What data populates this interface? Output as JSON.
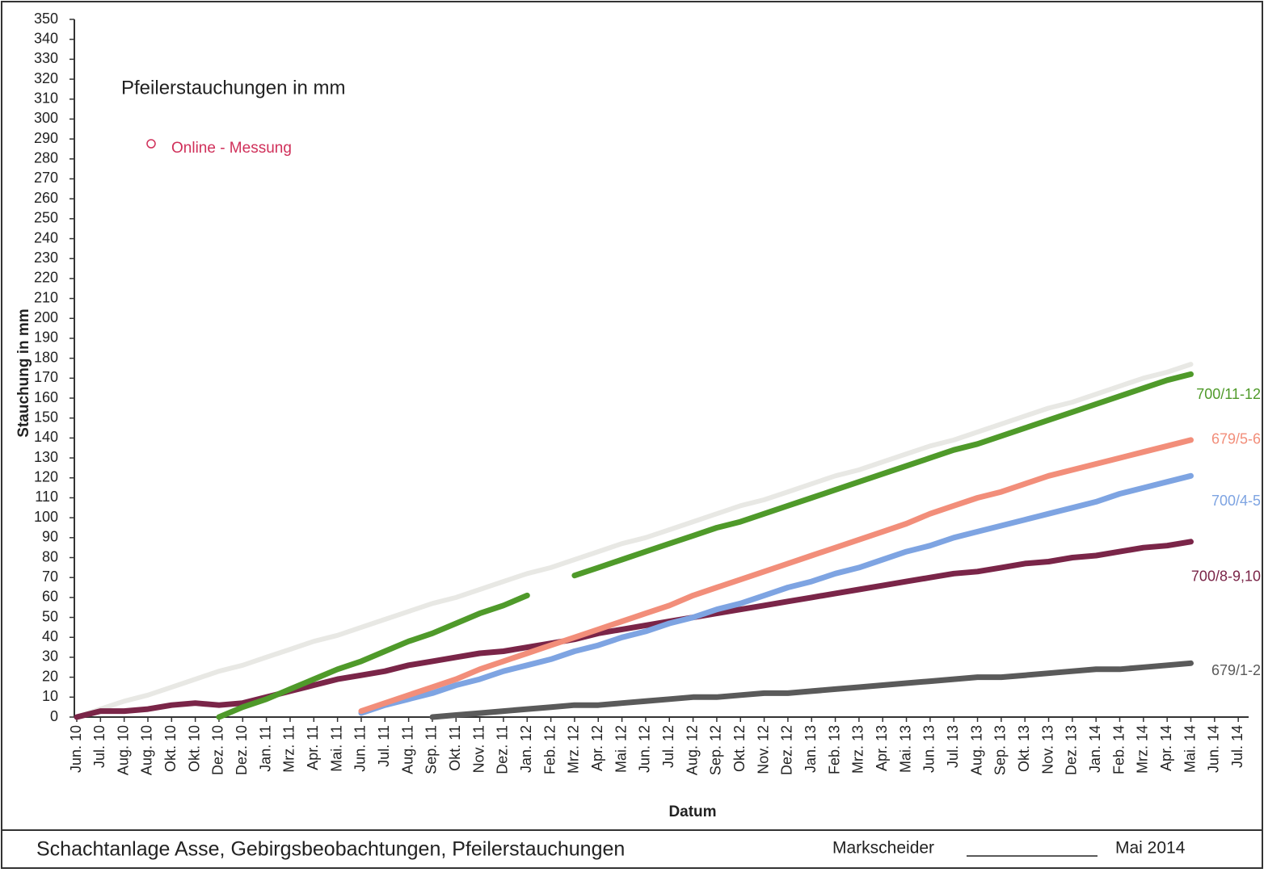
{
  "chart_data": {
    "type": "line",
    "title": "Pfeilerstauchungen in mm",
    "legend_label": "Online - Messung",
    "legend_color": "#d0305a",
    "y_label": "Stauchung in mm",
    "x_label": "Datum",
    "categories": [
      "Jun. 10",
      "Jul. 10",
      "Aug. 10",
      "Aug. 10",
      "Okt. 10",
      "Okt. 10",
      "Dez. 10",
      "Dez. 10",
      "Jan. 11",
      "Mrz. 11",
      "Apr. 11",
      "Mai. 11",
      "Jun. 11",
      "Jul. 11",
      "Aug. 11",
      "Sep. 11",
      "Okt. 11",
      "Nov. 11",
      "Dez. 11",
      "Jan. 12",
      "Feb. 12",
      "Mrz. 12",
      "Apr. 12",
      "Mai. 12",
      "Jun. 12",
      "Jul. 12",
      "Aug. 12",
      "Sep. 12",
      "Okt. 12",
      "Nov. 12",
      "Dez. 12",
      "Jan. 13",
      "Feb. 13",
      "Mrz. 13",
      "Apr. 13",
      "Mai. 13",
      "Jun. 13",
      "Jul. 13",
      "Aug. 13",
      "Sep. 13",
      "Okt. 13",
      "Nov. 13",
      "Dez. 13",
      "Jan. 14",
      "Feb. 14",
      "Mrz. 14",
      "Apr. 14",
      "Mai. 14",
      "Jun. 14",
      "Jul. 14"
    ],
    "ylim": [
      0,
      350
    ],
    "yticks": [
      0,
      10,
      20,
      30,
      40,
      50,
      60,
      70,
      80,
      90,
      100,
      110,
      120,
      130,
      140,
      150,
      160,
      170,
      180,
      190,
      200,
      210,
      220,
      230,
      240,
      250,
      260,
      270,
      280,
      290,
      300,
      310,
      320,
      330,
      340,
      350
    ],
    "series": [
      {
        "color": "#e8e8e4",
        "values": [
          0,
          4,
          8,
          11,
          15,
          19,
          23,
          26,
          30,
          34,
          38,
          41,
          45,
          49,
          53,
          57,
          60,
          64,
          68,
          72,
          75,
          79,
          83,
          87,
          90,
          94,
          98,
          102,
          106,
          109,
          113,
          117,
          121,
          124,
          128,
          132,
          136,
          139,
          143,
          147,
          151,
          155,
          158,
          162,
          166,
          170,
          173,
          177,
          null,
          null
        ]
      },
      {
        "name": "679/1-2",
        "color": "#5a5a5a",
        "values": [
          null,
          null,
          null,
          null,
          null,
          null,
          null,
          null,
          null,
          null,
          null,
          null,
          null,
          null,
          null,
          0,
          1,
          2,
          3,
          4,
          5,
          6,
          6,
          7,
          8,
          9,
          10,
          10,
          11,
          12,
          12,
          13,
          14,
          15,
          16,
          17,
          18,
          19,
          20,
          20,
          21,
          22,
          23,
          24,
          24,
          25,
          26,
          27,
          null,
          null
        ]
      },
      {
        "name": "700/8-9,10",
        "color": "#7a2548",
        "values": [
          0,
          3,
          3,
          4,
          6,
          7,
          6,
          7,
          10,
          13,
          16,
          19,
          21,
          23,
          26,
          28,
          30,
          32,
          33,
          35,
          37,
          39,
          42,
          44,
          46,
          48,
          50,
          52,
          54,
          56,
          58,
          60,
          62,
          64,
          66,
          68,
          70,
          72,
          73,
          75,
          77,
          78,
          80,
          81,
          83,
          85,
          86,
          88,
          null,
          null
        ]
      },
      {
        "name": "700/4-5",
        "color": "#7ea4e2",
        "values": [
          null,
          null,
          null,
          null,
          null,
          null,
          null,
          null,
          null,
          null,
          null,
          null,
          2,
          6,
          9,
          12,
          16,
          19,
          23,
          26,
          29,
          33,
          36,
          40,
          43,
          47,
          50,
          54,
          57,
          61,
          65,
          68,
          72,
          75,
          79,
          83,
          86,
          90,
          93,
          96,
          99,
          102,
          105,
          108,
          112,
          115,
          118,
          121,
          null,
          null
        ]
      },
      {
        "name": "679/5-6",
        "color": "#f28e7a",
        "values": [
          null,
          null,
          null,
          null,
          null,
          null,
          null,
          null,
          null,
          null,
          null,
          null,
          3,
          7,
          11,
          15,
          19,
          24,
          28,
          32,
          36,
          40,
          44,
          48,
          52,
          56,
          61,
          65,
          69,
          73,
          77,
          81,
          85,
          89,
          93,
          97,
          102,
          106,
          110,
          113,
          117,
          121,
          124,
          127,
          130,
          133,
          136,
          139,
          null,
          null
        ]
      },
      {
        "name": "700/11-12",
        "color": "#4f9a2a",
        "values": [
          null,
          null,
          null,
          null,
          null,
          null,
          0,
          5,
          9,
          14,
          19,
          24,
          28,
          33,
          38,
          42,
          47,
          52,
          56,
          61,
          null,
          71,
          75,
          79,
          83,
          87,
          91,
          95,
          98,
          102,
          106,
          110,
          114,
          118,
          122,
          126,
          130,
          134,
          137,
          141,
          145,
          149,
          153,
          157,
          161,
          165,
          169,
          172,
          null,
          null
        ]
      }
    ]
  },
  "footer": {
    "title": "Schachtanlage Asse, Gebirgsbeobachtungen, Pfeilerstauchungen",
    "signer": "Markscheider",
    "date": "Mai 2014"
  }
}
